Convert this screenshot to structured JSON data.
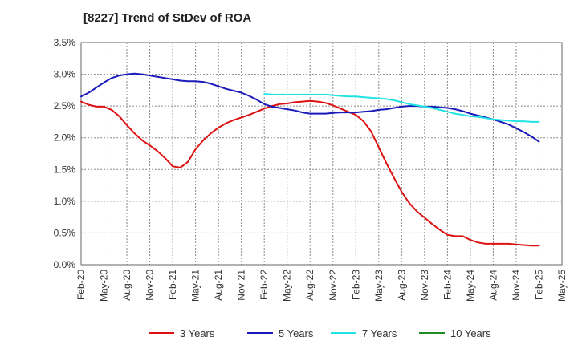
{
  "chart_data": {
    "type": "line",
    "title": "[8227]  Trend of StDev of ROA",
    "xlabel": "",
    "ylabel": "",
    "x_ticks": [
      "Feb-20",
      "May-20",
      "Aug-20",
      "Nov-20",
      "Feb-21",
      "May-21",
      "Aug-21",
      "Nov-21",
      "Feb-22",
      "May-22",
      "Aug-22",
      "Nov-22",
      "Feb-23",
      "May-23",
      "Aug-23",
      "Nov-23",
      "Feb-24",
      "May-24",
      "Aug-24",
      "Nov-24",
      "Feb-25",
      "May-25"
    ],
    "y_ticks": [
      "0.0%",
      "0.5%",
      "1.0%",
      "1.5%",
      "2.0%",
      "2.5%",
      "3.0%",
      "3.5%"
    ],
    "ylim": [
      0,
      3.5
    ],
    "grid": true,
    "legend_position": "bottom",
    "series": [
      {
        "name": "3 Years",
        "color": "#dd1111",
        "points": [
          [
            "Feb-20",
            2.57
          ],
          [
            "Mar-20",
            2.52
          ],
          [
            "Apr-20",
            2.49
          ],
          [
            "May-20",
            2.49
          ],
          [
            "Jun-20",
            2.44
          ],
          [
            "Jul-20",
            2.34
          ],
          [
            "Aug-20",
            2.2
          ],
          [
            "Sep-20",
            2.07
          ],
          [
            "Oct-20",
            1.96
          ],
          [
            "Nov-20",
            1.88
          ],
          [
            "Dec-20",
            1.79
          ],
          [
            "Jan-21",
            1.68
          ],
          [
            "Feb-21",
            1.55
          ],
          [
            "Mar-21",
            1.53
          ],
          [
            "Apr-21",
            1.62
          ],
          [
            "May-21",
            1.82
          ],
          [
            "Jun-21",
            1.96
          ],
          [
            "Jul-21",
            2.07
          ],
          [
            "Aug-21",
            2.16
          ],
          [
            "Sep-21",
            2.23
          ],
          [
            "Oct-21",
            2.28
          ],
          [
            "Nov-21",
            2.32
          ],
          [
            "Dec-21",
            2.36
          ],
          [
            "Jan-22",
            2.41
          ],
          [
            "Feb-22",
            2.46
          ],
          [
            "Mar-22",
            2.5
          ],
          [
            "Apr-22",
            2.53
          ],
          [
            "May-22",
            2.54
          ],
          [
            "Jun-22",
            2.56
          ],
          [
            "Jul-22",
            2.57
          ],
          [
            "Aug-22",
            2.58
          ],
          [
            "Sep-22",
            2.57
          ],
          [
            "Oct-22",
            2.55
          ],
          [
            "Nov-22",
            2.51
          ],
          [
            "Dec-22",
            2.46
          ],
          [
            "Jan-23",
            2.41
          ],
          [
            "Feb-23",
            2.36
          ],
          [
            "Mar-23",
            2.26
          ],
          [
            "Apr-23",
            2.1
          ],
          [
            "May-23",
            1.85
          ],
          [
            "Jun-23",
            1.6
          ],
          [
            "Jul-23",
            1.37
          ],
          [
            "Aug-23",
            1.15
          ],
          [
            "Sep-23",
            0.97
          ],
          [
            "Oct-23",
            0.84
          ],
          [
            "Nov-23",
            0.74
          ],
          [
            "Dec-23",
            0.64
          ],
          [
            "Jan-24",
            0.55
          ],
          [
            "Feb-24",
            0.47
          ],
          [
            "Mar-24",
            0.45
          ],
          [
            "Apr-24",
            0.45
          ],
          [
            "May-24",
            0.39
          ],
          [
            "Jun-24",
            0.35
          ],
          [
            "Jul-24",
            0.33
          ],
          [
            "Aug-24",
            0.33
          ],
          [
            "Sep-24",
            0.33
          ],
          [
            "Oct-24",
            0.33
          ],
          [
            "Nov-24",
            0.32
          ],
          [
            "Dec-24",
            0.31
          ],
          [
            "Jan-25",
            0.3
          ],
          [
            "Feb-25",
            0.3
          ]
        ]
      },
      {
        "name": "5 Years",
        "color": "#1a1abb",
        "points": [
          [
            "Feb-20",
            2.65
          ],
          [
            "Mar-20",
            2.71
          ],
          [
            "Apr-20",
            2.79
          ],
          [
            "May-20",
            2.87
          ],
          [
            "Jun-20",
            2.94
          ],
          [
            "Jul-20",
            2.98
          ],
          [
            "Aug-20",
            3.0
          ],
          [
            "Sep-20",
            3.01
          ],
          [
            "Oct-20",
            3.0
          ],
          [
            "Nov-20",
            2.98
          ],
          [
            "Dec-20",
            2.96
          ],
          [
            "Jan-21",
            2.94
          ],
          [
            "Feb-21",
            2.92
          ],
          [
            "Mar-21",
            2.9
          ],
          [
            "Apr-21",
            2.89
          ],
          [
            "May-21",
            2.89
          ],
          [
            "Jun-21",
            2.88
          ],
          [
            "Jul-21",
            2.85
          ],
          [
            "Aug-21",
            2.81
          ],
          [
            "Sep-21",
            2.77
          ],
          [
            "Oct-21",
            2.74
          ],
          [
            "Nov-21",
            2.71
          ],
          [
            "Dec-21",
            2.66
          ],
          [
            "Jan-22",
            2.6
          ],
          [
            "Feb-22",
            2.53
          ],
          [
            "Mar-22",
            2.49
          ],
          [
            "Apr-22",
            2.47
          ],
          [
            "May-22",
            2.45
          ],
          [
            "Jun-22",
            2.43
          ],
          [
            "Jul-22",
            2.4
          ],
          [
            "Aug-22",
            2.38
          ],
          [
            "Sep-22",
            2.38
          ],
          [
            "Oct-22",
            2.38
          ],
          [
            "Nov-22",
            2.39
          ],
          [
            "Dec-22",
            2.4
          ],
          [
            "Jan-23",
            2.4
          ],
          [
            "Feb-23",
            2.4
          ],
          [
            "Mar-23",
            2.41
          ],
          [
            "Apr-23",
            2.42
          ],
          [
            "May-23",
            2.44
          ],
          [
            "Jun-23",
            2.45
          ],
          [
            "Jul-23",
            2.47
          ],
          [
            "Aug-23",
            2.49
          ],
          [
            "Sep-23",
            2.5
          ],
          [
            "Oct-23",
            2.5
          ],
          [
            "Nov-23",
            2.49
          ],
          [
            "Dec-23",
            2.49
          ],
          [
            "Jan-24",
            2.48
          ],
          [
            "Feb-24",
            2.47
          ],
          [
            "Mar-24",
            2.45
          ],
          [
            "Apr-24",
            2.42
          ],
          [
            "May-24",
            2.38
          ],
          [
            "Jun-24",
            2.35
          ],
          [
            "Jul-24",
            2.32
          ],
          [
            "Aug-24",
            2.29
          ],
          [
            "Sep-24",
            2.25
          ],
          [
            "Oct-24",
            2.21
          ],
          [
            "Nov-24",
            2.15
          ],
          [
            "Dec-24",
            2.09
          ],
          [
            "Jan-25",
            2.02
          ],
          [
            "Feb-25",
            1.94
          ]
        ]
      },
      {
        "name": "7 Years",
        "color": "#22e3e3",
        "points": [
          [
            "Feb-22",
            2.69
          ],
          [
            "Mar-22",
            2.68
          ],
          [
            "Apr-22",
            2.68
          ],
          [
            "May-22",
            2.68
          ],
          [
            "Jun-22",
            2.68
          ],
          [
            "Jul-22",
            2.68
          ],
          [
            "Aug-22",
            2.68
          ],
          [
            "Sep-22",
            2.68
          ],
          [
            "Oct-22",
            2.68
          ],
          [
            "Nov-22",
            2.67
          ],
          [
            "Dec-22",
            2.66
          ],
          [
            "Jan-23",
            2.65
          ],
          [
            "Feb-23",
            2.65
          ],
          [
            "Mar-23",
            2.64
          ],
          [
            "Apr-23",
            2.63
          ],
          [
            "May-23",
            2.62
          ],
          [
            "Jun-23",
            2.61
          ],
          [
            "Jul-23",
            2.59
          ],
          [
            "Aug-23",
            2.56
          ],
          [
            "Sep-23",
            2.53
          ],
          [
            "Oct-23",
            2.51
          ],
          [
            "Nov-23",
            2.49
          ],
          [
            "Dec-23",
            2.47
          ],
          [
            "Jan-24",
            2.44
          ],
          [
            "Feb-24",
            2.41
          ],
          [
            "Mar-24",
            2.38
          ],
          [
            "Apr-24",
            2.36
          ],
          [
            "May-24",
            2.34
          ],
          [
            "Jun-24",
            2.33
          ],
          [
            "Jul-24",
            2.31
          ],
          [
            "Aug-24",
            2.29
          ],
          [
            "Sep-24",
            2.28
          ],
          [
            "Oct-24",
            2.27
          ],
          [
            "Nov-24",
            2.26
          ],
          [
            "Dec-24",
            2.26
          ],
          [
            "Jan-25",
            2.25
          ],
          [
            "Feb-25",
            2.25
          ]
        ]
      },
      {
        "name": "10 Years",
        "color": "#228b22",
        "points": []
      }
    ]
  }
}
